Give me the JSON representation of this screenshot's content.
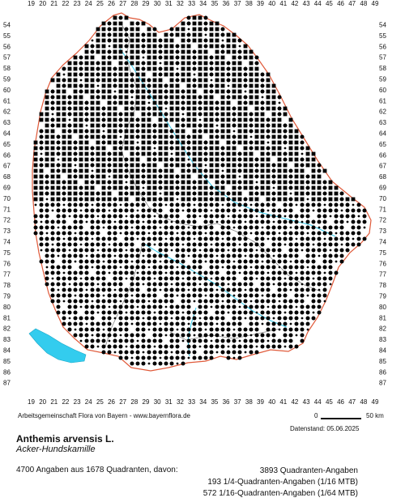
{
  "credit": "Arbeitsgemeinschaft Flora von Bayern - www.bayernflora.de",
  "date": "Datenstand: 05.06.2025",
  "scalebar": {
    "start": "0",
    "end": "50 km"
  },
  "species": {
    "latin": "Anthemis arvensis L.",
    "common": "Acker-Hundskamille"
  },
  "summary": {
    "total": "4700 Angaben aus 1678 Quadranten, davon:",
    "lines": [
      "3893 Quadranten-Angaben",
      "193 1/4-Quadranten-Angaben (1/16 MTB)",
      "572 1/16-Quadranten-Angaben (1/64 MTB)"
    ]
  },
  "grid_x": [
    "19",
    "20",
    "21",
    "22",
    "23",
    "24",
    "25",
    "26",
    "27",
    "28",
    "29",
    "30",
    "31",
    "32",
    "33",
    "34",
    "35",
    "36",
    "37",
    "38",
    "39",
    "40",
    "41",
    "42",
    "43",
    "44",
    "45",
    "46",
    "47",
    "48",
    "49"
  ],
  "grid_y": [
    "54",
    "55",
    "56",
    "57",
    "58",
    "59",
    "60",
    "61",
    "62",
    "63",
    "64",
    "65",
    "66",
    "67",
    "68",
    "69",
    "70",
    "71",
    "72",
    "73",
    "74",
    "75",
    "76",
    "77",
    "78",
    "79",
    "80",
    "81",
    "82",
    "83",
    "84",
    "85",
    "86",
    "87"
  ],
  "colors": {
    "border": "#e05a3a",
    "inner_border": "#888888",
    "water": "#33ccee",
    "marker": "#000000"
  },
  "legend_markers": {
    "quadrant": "square",
    "quarter": "large dot",
    "sixteenth": "small dot"
  }
}
